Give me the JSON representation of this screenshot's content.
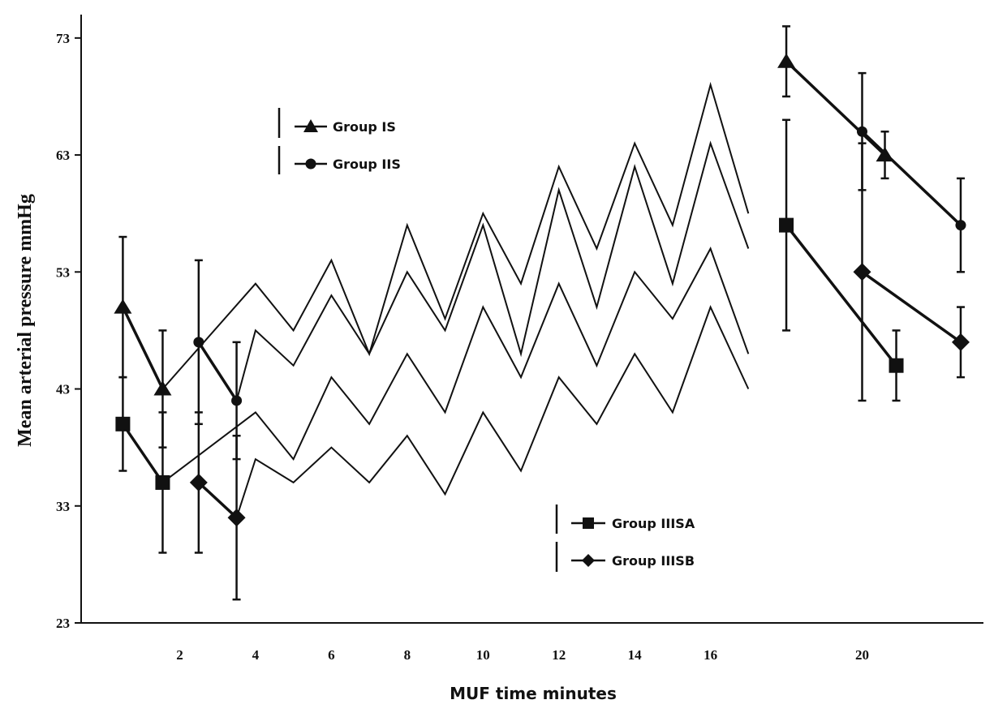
{
  "chart_data": {
    "type": "line",
    "title": "",
    "xlabel": "MUF time minutes",
    "ylabel": "Mean arterial pressure mmHg",
    "ylim": [
      23,
      75
    ],
    "xlim": [
      -0.6,
      23.2
    ],
    "y_ticks": [
      "23",
      "33",
      "43",
      "53",
      "63",
      "73"
    ],
    "x_ticks": [
      "2",
      "4",
      "6",
      "8",
      "10",
      "12",
      "14",
      "16",
      "20"
    ],
    "grid": false,
    "legend_groups": [
      {
        "position": "upper-left",
        "series": [
          "Group IS",
          "Group IIS"
        ]
      },
      {
        "position": "lower-center",
        "series": [
          "Group IIISA",
          "Group IIISB"
        ]
      }
    ],
    "series": [
      {
        "name": "Group IS",
        "marker": "triangle",
        "points": [
          {
            "x": 0.5,
            "y": 50.0,
            "err": 6
          },
          {
            "x": 1.55,
            "y": 43.0,
            "err": 5
          },
          {
            "x": 4.0,
            "y": 52.0
          },
          {
            "x": 5.0,
            "y": 48.0
          },
          {
            "x": 6.0,
            "y": 54.0
          },
          {
            "x": 7.0,
            "y": 46.0
          },
          {
            "x": 8.0,
            "y": 57.0
          },
          {
            "x": 9.0,
            "y": 49.0
          },
          {
            "x": 10.0,
            "y": 58.0
          },
          {
            "x": 11.0,
            "y": 52.0
          },
          {
            "x": 12.0,
            "y": 62.0
          },
          {
            "x": 13.0,
            "y": 55.0
          },
          {
            "x": 14.0,
            "y": 64.0
          },
          {
            "x": 15.0,
            "y": 57.0
          },
          {
            "x": 16.0,
            "y": 69.0
          },
          {
            "x": 17.0,
            "y": 58.0
          },
          {
            "x": 18.0,
            "y": 71.0,
            "err": 3
          },
          {
            "x": 20.6,
            "y": 63.0,
            "err": 2
          }
        ]
      },
      {
        "name": "Group IIS",
        "marker": "circle",
        "points": [
          {
            "x": 2.5,
            "y": 47.0,
            "err": 7
          },
          {
            "x": 3.5,
            "y": 42.0,
            "err": 5
          },
          {
            "x": 4.0,
            "y": 48.0
          },
          {
            "x": 5.0,
            "y": 45.0
          },
          {
            "x": 6.0,
            "y": 51.0
          },
          {
            "x": 7.0,
            "y": 46.0
          },
          {
            "x": 8.0,
            "y": 53.0
          },
          {
            "x": 9.0,
            "y": 48.0
          },
          {
            "x": 10.0,
            "y": 57.0
          },
          {
            "x": 11.0,
            "y": 46.0
          },
          {
            "x": 12.0,
            "y": 60.0
          },
          {
            "x": 13.0,
            "y": 50.0
          },
          {
            "x": 14.0,
            "y": 62.0
          },
          {
            "x": 15.0,
            "y": 52.0
          },
          {
            "x": 16.0,
            "y": 64.0
          },
          {
            "x": 17.0,
            "y": 55.0
          },
          {
            "x": 20.0,
            "y": 65.0,
            "err": 5
          },
          {
            "x": 22.6,
            "y": 57.0,
            "err": 4
          }
        ]
      },
      {
        "name": "Group IIISA",
        "marker": "square",
        "points": [
          {
            "x": 0.5,
            "y": 40.0,
            "err": 4
          },
          {
            "x": 1.55,
            "y": 35.0,
            "err": 6
          },
          {
            "x": 4.0,
            "y": 41.0
          },
          {
            "x": 5.0,
            "y": 37.0
          },
          {
            "x": 6.0,
            "y": 44.0
          },
          {
            "x": 7.0,
            "y": 40.0
          },
          {
            "x": 8.0,
            "y": 46.0
          },
          {
            "x": 9.0,
            "y": 41.0
          },
          {
            "x": 10.0,
            "y": 50.0
          },
          {
            "x": 11.0,
            "y": 44.0
          },
          {
            "x": 12.0,
            "y": 52.0
          },
          {
            "x": 13.0,
            "y": 45.0
          },
          {
            "x": 14.0,
            "y": 53.0
          },
          {
            "x": 15.0,
            "y": 49.0
          },
          {
            "x": 16.0,
            "y": 55.0
          },
          {
            "x": 17.0,
            "y": 46.0
          },
          {
            "x": 18.0,
            "y": 57.0,
            "err": 9
          },
          {
            "x": 20.9,
            "y": 45.0,
            "err": 3
          }
        ]
      },
      {
        "name": "Group IIISB",
        "marker": "diamond",
        "points": [
          {
            "x": 2.5,
            "y": 35.0,
            "err": 6
          },
          {
            "x": 3.5,
            "y": 32.0,
            "err": 7
          },
          {
            "x": 4.0,
            "y": 37.0
          },
          {
            "x": 5.0,
            "y": 35.0
          },
          {
            "x": 6.0,
            "y": 38.0
          },
          {
            "x": 7.0,
            "y": 35.0
          },
          {
            "x": 8.0,
            "y": 39.0
          },
          {
            "x": 9.0,
            "y": 34.0
          },
          {
            "x": 10.0,
            "y": 41.0
          },
          {
            "x": 11.0,
            "y": 36.0
          },
          {
            "x": 12.0,
            "y": 44.0
          },
          {
            "x": 13.0,
            "y": 40.0
          },
          {
            "x": 14.0,
            "y": 46.0
          },
          {
            "x": 15.0,
            "y": 41.0
          },
          {
            "x": 16.0,
            "y": 50.0
          },
          {
            "x": 17.0,
            "y": 43.0
          },
          {
            "x": 20.0,
            "y": 53.0,
            "err": 11
          },
          {
            "x": 22.6,
            "y": 47.0,
            "err": 3
          }
        ]
      }
    ],
    "colors": {
      "line": "#111111",
      "background": "#ffffff"
    }
  }
}
